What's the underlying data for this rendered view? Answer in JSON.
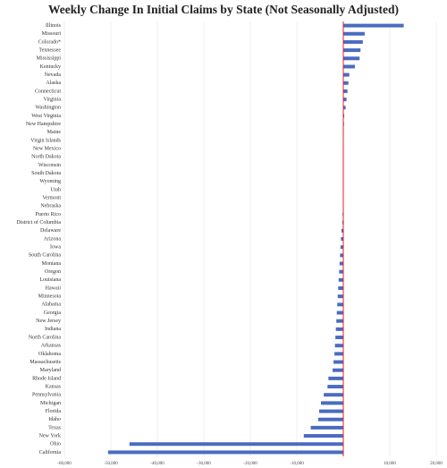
{
  "chart_data": {
    "type": "hbar",
    "title": "Weekly Change In Initial Claims by State (Not Seasonally Adjusted)",
    "categories": [
      "Illinois",
      "Missouri",
      "Colorado*",
      "Tennessee",
      "Mississippi",
      "Kentucky",
      "Nevada",
      "Alaska",
      "Connecticut",
      "Virginia",
      "Washington",
      "West Virginia",
      "New Hampshire",
      "Maine",
      "Virgin Islands",
      "New Mexico",
      "North Dakota",
      "Wisconsin",
      "South Dakota",
      "Wyoming",
      "Utah",
      "Vermont",
      "Nebraska",
      "Puerto Rico",
      "District of Columbia",
      "Delaware",
      "Arizona",
      "Iowa",
      "South Carolina",
      "Montana",
      "Oregon",
      "Louisiana",
      "Hawaii",
      "Minnesota",
      "Alabama",
      "Georgia",
      "New Jersey",
      "Indiana",
      "North Carolina",
      "Arkansas",
      "Oklahoma",
      "Massachusetts",
      "Maryland",
      "Rhode Island",
      "Kansas",
      "Pennsylvania",
      "Michigan",
      "Florida",
      "Idaho",
      "Texas",
      "New York",
      "Ohio",
      "California"
    ],
    "values": [
      13000,
      4600,
      4200,
      3700,
      3500,
      2500,
      1300,
      1100,
      900,
      700,
      500,
      200,
      150,
      100,
      50,
      40,
      30,
      20,
      10,
      0,
      -20,
      -50,
      -100,
      -150,
      -200,
      -400,
      -500,
      -600,
      -700,
      -800,
      -900,
      -1000,
      -1100,
      -1200,
      -1300,
      -1400,
      -1500,
      -1600,
      -1700,
      -1800,
      -1900,
      -2100,
      -2300,
      -3200,
      -3400,
      -4200,
      -4800,
      -5200,
      -5400,
      -7000,
      -8500,
      -46000,
      -50600
    ],
    "color": "#4a6cc0",
    "zero_line_color": "#e0202a",
    "xlim": [
      -60000,
      20000
    ],
    "xticks": [
      {
        "value": -60000,
        "label": "-60,000"
      },
      {
        "value": -50000,
        "label": "-50,000"
      },
      {
        "value": -40000,
        "label": "-40,000"
      },
      {
        "value": -30000,
        "label": "-30,000"
      },
      {
        "value": -20000,
        "label": "-20,000"
      },
      {
        "value": -10000,
        "label": "-10,000"
      },
      {
        "value": 10000,
        "label": "10,000"
      },
      {
        "value": 20000,
        "label": "20,000"
      }
    ],
    "grid": true
  }
}
